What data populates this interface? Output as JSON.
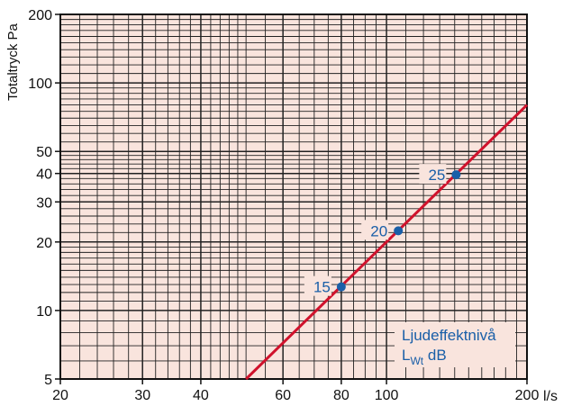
{
  "chart_data": {
    "type": "line",
    "title": "",
    "xlabel": "",
    "ylabel": "Totaltryck Pa",
    "x_unit": "l/s",
    "xscale": "log",
    "yscale": "log",
    "xlim": [
      20,
      200
    ],
    "ylim": [
      5,
      200
    ],
    "grid": true,
    "background": "#f9e4dd",
    "x_ticks": [
      {
        "value": 20,
        "label": "20"
      },
      {
        "value": 30,
        "label": "30"
      },
      {
        "value": 40,
        "label": "40"
      },
      {
        "value": 60,
        "label": "60"
      },
      {
        "value": 80,
        "label": "80"
      },
      {
        "value": 100,
        "label": "100"
      },
      {
        "value": 200,
        "label": "200"
      }
    ],
    "y_ticks": [
      {
        "value": 5,
        "label": "5"
      },
      {
        "value": 10,
        "label": "10"
      },
      {
        "value": 20,
        "label": "20"
      },
      {
        "value": 30,
        "label": "30"
      },
      {
        "value": 40,
        "label": "40"
      },
      {
        "value": 50,
        "label": "50"
      },
      {
        "value": 100,
        "label": "100"
      },
      {
        "value": 200,
        "label": "200"
      }
    ],
    "series": [
      {
        "color": "#d0122c",
        "x": [
          50,
          200
        ],
        "y": [
          5,
          80
        ]
      }
    ],
    "points": [
      {
        "label": "15",
        "x": 80,
        "y": 12.7,
        "color": "#1a5fa8"
      },
      {
        "label": "20",
        "x": 106,
        "y": 22.4,
        "color": "#1a5fa8"
      },
      {
        "label": "25",
        "x": 141,
        "y": 39.5,
        "color": "#1a5fa8"
      }
    ],
    "legend": {
      "placement": "bottom-right",
      "line1": "Ljudeffektnivå",
      "line2_main": "L",
      "line2_sub": "Wt",
      "line2_unit": " dB",
      "color": "#1a5fa8"
    }
  }
}
